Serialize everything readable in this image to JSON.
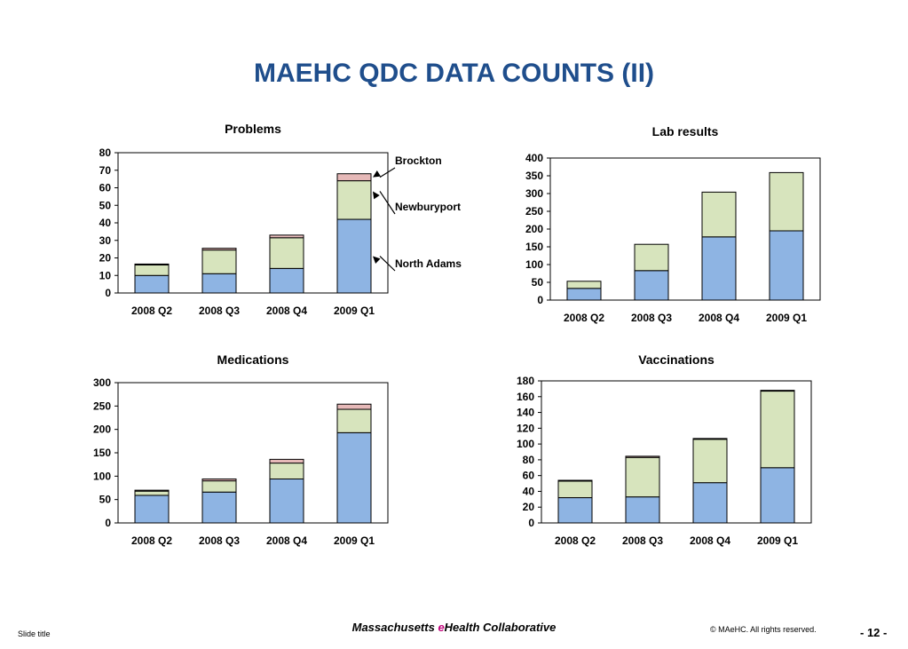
{
  "slide": {
    "title": "MAEHC QDC DATA COUNTS (II)",
    "footer_left": "Slide title",
    "footer_org_prefix": "Massachusetts ",
    "footer_org_e": "e",
    "footer_org_suffix": "Health Collaborative",
    "footer_right": "© MAeHC.  All rights reserved.",
    "page_number": "- 12 -"
  },
  "colors": {
    "north_adams": "#8eb4e3",
    "newburyport": "#d7e4bd",
    "brockton": "#e6b9b8",
    "title": "#1f4e8c"
  },
  "chart_data": [
    {
      "type": "bar",
      "stacked": true,
      "title": "Problems",
      "categories": [
        "2008 Q2",
        "2008 Q3",
        "2008 Q4",
        "2009 Q1"
      ],
      "series": [
        {
          "name": "North Adams",
          "values": [
            10,
            11,
            14,
            42
          ]
        },
        {
          "name": "Newburyport",
          "values": [
            6,
            13.5,
            17.5,
            22
          ]
        },
        {
          "name": "Brockton",
          "values": [
            0.5,
            1,
            1.5,
            4
          ]
        }
      ],
      "ylim": [
        0,
        80
      ],
      "yticks": [
        0,
        10,
        20,
        30,
        40,
        50,
        60,
        70,
        80
      ],
      "annotations": [
        "Brockton",
        "Newburyport",
        "North Adams"
      ]
    },
    {
      "type": "bar",
      "stacked": true,
      "title": "Lab results",
      "categories": [
        "2008 Q2",
        "2008 Q3",
        "2008 Q4",
        "2009 Q1"
      ],
      "series": [
        {
          "values": [
            33,
            83,
            178,
            195
          ]
        },
        {
          "values": [
            20,
            74,
            126,
            164
          ]
        }
      ],
      "ylim": [
        0,
        400
      ],
      "yticks": [
        0,
        50,
        100,
        150,
        200,
        250,
        300,
        350,
        400
      ]
    },
    {
      "type": "bar",
      "stacked": true,
      "title": "Medications",
      "categories": [
        "2008 Q2",
        "2008 Q3",
        "2008 Q4",
        "2009 Q1"
      ],
      "series": [
        {
          "values": [
            59,
            66,
            94,
            193
          ]
        },
        {
          "values": [
            9,
            24,
            34,
            50
          ]
        },
        {
          "values": [
            2,
            4,
            8,
            11
          ]
        }
      ],
      "ylim": [
        0,
        300
      ],
      "yticks": [
        0,
        50,
        100,
        150,
        200,
        250,
        300
      ]
    },
    {
      "type": "bar",
      "stacked": true,
      "title": "Vaccinations",
      "categories": [
        "2008 Q2",
        "2008 Q3",
        "2008 Q4",
        "2009 Q1"
      ],
      "series": [
        {
          "values": [
            32,
            33,
            51,
            70
          ]
        },
        {
          "values": [
            21,
            50,
            55,
            97
          ]
        },
        {
          "values": [
            1,
            1.5,
            1,
            1
          ]
        }
      ],
      "ylim": [
        0,
        180
      ],
      "yticks": [
        0,
        20,
        40,
        60,
        80,
        100,
        120,
        140,
        160,
        180
      ]
    }
  ]
}
